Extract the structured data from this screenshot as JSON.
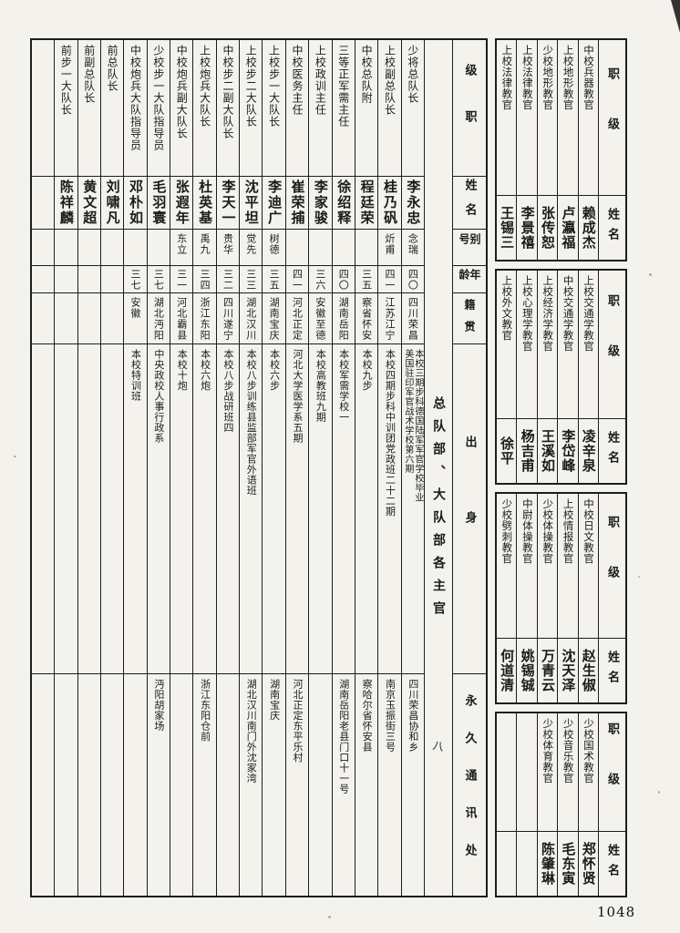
{
  "page": {
    "number": "1048",
    "section_mark": "八"
  },
  "main_table": {
    "title_column": "总队部、大队部各主官",
    "headers": {
      "rank": "级职",
      "name": "姓名",
      "alias": "别号",
      "age": "年龄",
      "origin": "籍贯",
      "background": "出身",
      "address": "永久通讯处"
    },
    "columns": [
      {
        "rank": "少将总队长",
        "name": "李永忠",
        "alias": "念瑞",
        "age": "四〇",
        "origin": "四川荣昌",
        "background": "本校三期步科德国陆军军官学校毕业\n美国驻印军官战术学校第六期",
        "address": "四川荣昌协和乡"
      },
      {
        "rank": "上校副总队长",
        "name": "桂乃矾",
        "alias": "炘甫",
        "age": "四一",
        "origin": "江苏江宁",
        "background": "本校四期步科中训团党政班二十二期",
        "address": "南京玉振街三号"
      },
      {
        "rank": "中校总队附",
        "name": "程廷荣",
        "alias": "",
        "age": "三五",
        "origin": "察省怀安",
        "background": "本校九步",
        "address": "察哈尔省怀安县"
      },
      {
        "rank": "三等正军需主任",
        "name": "徐绍释",
        "alias": "",
        "age": "四〇",
        "origin": "湖南岳阳",
        "background": "本校军需学校一",
        "address": "湖南岳阳老县门口十一号"
      },
      {
        "rank": "上校政训主任",
        "name": "李家骏",
        "alias": "",
        "age": "三六",
        "origin": "安徽至德",
        "background": "本校高教班九期",
        "address": ""
      },
      {
        "rank": "中校医务主任",
        "name": "崔荣捕",
        "alias": "",
        "age": "四一",
        "origin": "河北正定",
        "background": "河北大学医学系五期",
        "address": "河北正定东平乐村"
      },
      {
        "rank": "上校步一大队长",
        "name": "李迪广",
        "alias": "树德",
        "age": "三五",
        "origin": "湖南宝庆",
        "background": "本校六步",
        "address": "湖南宝庆"
      },
      {
        "rank": "上校步二大队长",
        "name": "沈平坦",
        "alias": "觉先",
        "age": "三三",
        "origin": "湖北汉川",
        "background": "本校八步训练县监部军官外语班",
        "address": "湖北汉川南门外沈家湾"
      },
      {
        "rank": "中校步二副大队长",
        "name": "李天一",
        "alias": "贵华",
        "age": "三二",
        "origin": "四川遂宁",
        "background": "本校八步战研班四",
        "address": ""
      },
      {
        "rank": "上校炮兵大队长",
        "name": "杜英基",
        "alias": "禹九",
        "age": "三四",
        "origin": "浙江东阳",
        "background": "本校六炮",
        "address": "浙江东阳仓前"
      },
      {
        "rank": "中校炮兵副大队长",
        "name": "张遐年",
        "alias": "东立",
        "age": "三一",
        "origin": "河北霸县",
        "background": "本校十炮",
        "address": ""
      },
      {
        "rank": "少校步一大队指导员",
        "name": "毛羽寰",
        "alias": "",
        "age": "三七",
        "origin": "湖北沔阳",
        "background": "中央政校人事行政系",
        "address": "沔阳胡家场"
      },
      {
        "rank": "中校炮兵大队指导员",
        "name": "邓朴如",
        "alias": "",
        "age": "三七",
        "origin": "安徽",
        "background": "本校特训班",
        "address": ""
      },
      {
        "rank": "前总队长",
        "name": "刘啸凡",
        "alias": "",
        "age": "",
        "origin": "",
        "background": "",
        "address": ""
      },
      {
        "rank": "前副总队长",
        "name": "黄文超",
        "alias": "",
        "age": "",
        "origin": "",
        "background": "",
        "address": ""
      },
      {
        "rank": "前步一大队长",
        "name": "陈祥麟",
        "alias": "",
        "age": "",
        "origin": "",
        "background": "",
        "address": ""
      },
      {
        "rank": "",
        "name": "",
        "alias": "",
        "age": "",
        "origin": "",
        "background": "",
        "address": ""
      }
    ]
  },
  "right_table": {
    "headers": {
      "rank": "职级",
      "name": "姓名"
    },
    "bands": [
      {
        "entries": [
          {
            "rank": "中校兵器教官",
            "name": "赖成杰"
          },
          {
            "rank": "上校地形教官",
            "name": "卢瀛福"
          },
          {
            "rank": "少校地形教官",
            "name": "张传恕"
          },
          {
            "rank": "上校法律教官",
            "name": "李景禧"
          },
          {
            "rank": "上校法律教官",
            "name": "王锡三"
          }
        ]
      },
      {
        "entries": [
          {
            "rank": "上校交通学教官",
            "name": "凌辛泉"
          },
          {
            "rank": "中校交通学教官",
            "name": "李岱峰"
          },
          {
            "rank": "上校经济学教官",
            "name": "王溪如"
          },
          {
            "rank": "上校心理学教官",
            "name": "杨吉甫"
          },
          {
            "rank": "上校外文教官",
            "name": "徐平"
          }
        ]
      },
      {
        "entries": [
          {
            "rank": "中校日文教官",
            "name": "赵生俶"
          },
          {
            "rank": "上校情报教官",
            "name": "沈天泽"
          },
          {
            "rank": "少校体操教官",
            "name": "万青云"
          },
          {
            "rank": "中尉体操教官",
            "name": "姚锡铖"
          },
          {
            "rank": "少校劈刺教官",
            "name": "何道清"
          }
        ]
      },
      {
        "entries": [
          {
            "rank": "少校国术教官",
            "name": "郑怀贤"
          },
          {
            "rank": "少校音乐教官",
            "name": "毛东寅"
          },
          {
            "rank": "少校体育教官",
            "name": "陈肇琳"
          },
          {
            "rank": "",
            "name": ""
          },
          {
            "rank": "",
            "name": ""
          }
        ]
      }
    ]
  }
}
